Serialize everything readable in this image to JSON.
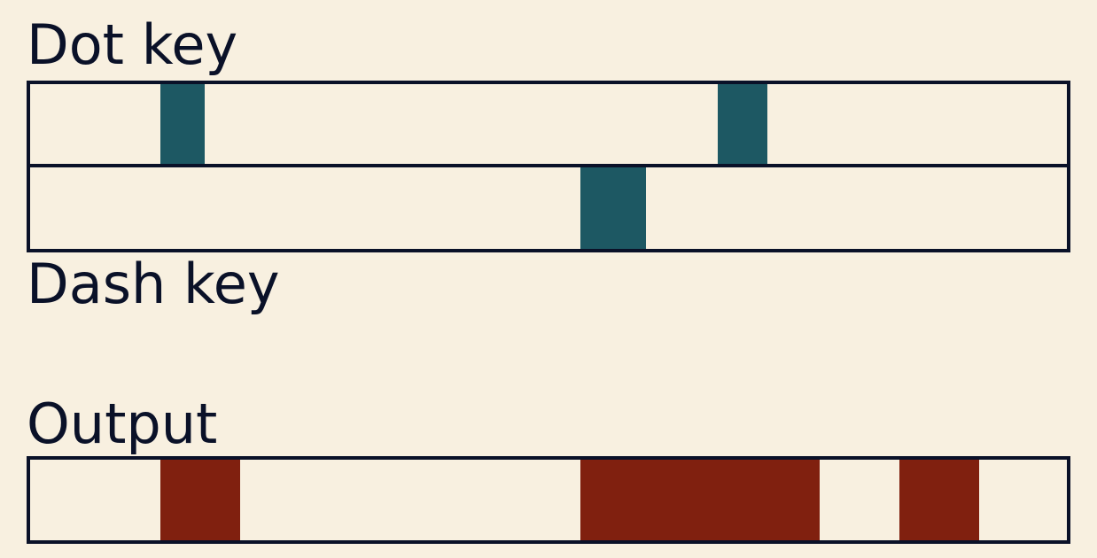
{
  "labels": {
    "dot_key": "Dot key",
    "dash_key": "Dash key",
    "output": "Output"
  }
}
